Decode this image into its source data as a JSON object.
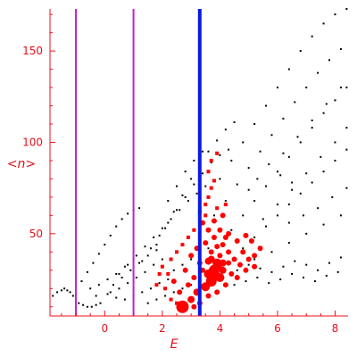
{
  "chart_data": {
    "type": "scatter",
    "xlabel": "E",
    "ylabel": "<n>",
    "xlim": [
      -1.9,
      8.45
    ],
    "ylim": [
      5,
      173
    ],
    "x_ticks": [
      0,
      2,
      4,
      6,
      8
    ],
    "y_ticks": [
      50,
      100,
      150
    ],
    "grid": false,
    "axis_color": "#e8101a",
    "vertical_lines": [
      {
        "x": -1.0,
        "color": "#c020d0"
      },
      {
        "x": 1.0,
        "color": "#c020d0"
      },
      {
        "x": 3.3,
        "color": "#0a1be0"
      }
    ],
    "series": [
      {
        "color": "#000000",
        "points": [
          [
            -1.8,
            16
          ],
          [
            -1.65,
            18
          ],
          [
            -1.5,
            19
          ],
          [
            -1.4,
            20
          ],
          [
            -1.3,
            19
          ],
          [
            -1.2,
            18
          ],
          [
            -1.1,
            16
          ],
          [
            -1.0,
            14
          ],
          [
            -0.9,
            12
          ],
          [
            -0.75,
            11
          ],
          [
            -0.6,
            10
          ],
          [
            -0.45,
            10
          ],
          [
            -0.3,
            11
          ],
          [
            -0.15,
            12
          ],
          [
            -0.8,
            24
          ],
          [
            -0.6,
            29
          ],
          [
            -0.4,
            34
          ],
          [
            -0.2,
            39
          ],
          [
            0.0,
            44
          ],
          [
            0.2,
            49
          ],
          [
            0.4,
            54
          ],
          [
            0.6,
            58
          ],
          [
            0.8,
            61
          ],
          [
            1.0,
            63
          ],
          [
            1.2,
            64
          ],
          [
            0.5,
            28
          ],
          [
            0.8,
            33
          ],
          [
            1.1,
            38
          ],
          [
            1.4,
            43
          ],
          [
            1.7,
            48
          ],
          [
            2.0,
            53
          ],
          [
            2.3,
            58
          ],
          [
            2.6,
            63
          ],
          [
            2.9,
            68
          ],
          [
            3.2,
            72
          ],
          [
            3.5,
            76
          ],
          [
            1.3,
            35
          ],
          [
            1.6,
            42
          ],
          [
            1.9,
            49
          ],
          [
            2.2,
            56
          ],
          [
            2.5,
            63
          ],
          [
            2.8,
            70
          ],
          [
            3.1,
            77
          ],
          [
            3.4,
            83
          ],
          [
            3.7,
            89
          ],
          [
            4.0,
            93
          ],
          [
            4.3,
            96
          ],
          [
            1.8,
            44
          ],
          [
            2.1,
            53
          ],
          [
            2.4,
            62
          ],
          [
            2.7,
            71
          ],
          [
            3.0,
            80
          ],
          [
            3.3,
            88
          ],
          [
            3.6,
            95
          ],
          [
            3.9,
            101
          ],
          [
            4.2,
            107
          ],
          [
            4.5,
            111
          ],
          [
            2.2,
            68
          ],
          [
            2.5,
            76
          ],
          [
            2.8,
            84
          ],
          [
            3.1,
            90
          ],
          [
            3.4,
            95
          ],
          [
            3.6,
            70
          ],
          [
            4.0,
            80
          ],
          [
            4.4,
            90
          ],
          [
            4.8,
            100
          ],
          [
            5.2,
            110
          ],
          [
            5.6,
            120
          ],
          [
            6.0,
            130
          ],
          [
            6.4,
            140
          ],
          [
            6.8,
            150
          ],
          [
            7.2,
            158
          ],
          [
            7.6,
            165
          ],
          [
            8.0,
            170
          ],
          [
            8.4,
            173
          ],
          [
            3.8,
            60
          ],
          [
            4.2,
            68
          ],
          [
            4.6,
            77
          ],
          [
            5.0,
            86
          ],
          [
            5.4,
            95
          ],
          [
            5.8,
            104
          ],
          [
            6.2,
            113
          ],
          [
            6.6,
            122
          ],
          [
            7.0,
            130
          ],
          [
            7.4,
            138
          ],
          [
            7.8,
            145
          ],
          [
            8.2,
            151
          ],
          [
            4.4,
            52
          ],
          [
            4.8,
            60
          ],
          [
            5.2,
            68
          ],
          [
            5.6,
            76
          ],
          [
            6.0,
            84
          ],
          [
            6.4,
            92
          ],
          [
            6.8,
            100
          ],
          [
            7.2,
            108
          ],
          [
            7.6,
            116
          ],
          [
            8.0,
            123
          ],
          [
            8.4,
            130
          ],
          [
            4.8,
            42
          ],
          [
            5.2,
            48
          ],
          [
            5.6,
            54
          ],
          [
            6.0,
            60
          ],
          [
            6.4,
            66
          ],
          [
            6.8,
            72
          ],
          [
            7.2,
            78
          ],
          [
            7.6,
            84
          ],
          [
            8.0,
            90
          ],
          [
            8.4,
            96
          ],
          [
            5.2,
            36
          ],
          [
            5.8,
            40
          ],
          [
            6.4,
            45
          ],
          [
            7.0,
            50
          ],
          [
            7.6,
            55
          ],
          [
            8.2,
            60
          ],
          [
            5.5,
            58
          ],
          [
            6.0,
            66
          ],
          [
            6.5,
            74
          ],
          [
            7.0,
            83
          ],
          [
            7.5,
            92
          ],
          [
            8.0,
            100
          ],
          [
            8.4,
            108
          ],
          [
            6.2,
            94
          ],
          [
            6.7,
            103
          ],
          [
            7.2,
            112
          ],
          [
            7.7,
            121
          ],
          [
            8.2,
            130
          ],
          [
            0.2,
            18
          ],
          [
            0.5,
            20
          ],
          [
            0.8,
            23
          ],
          [
            1.1,
            26
          ],
          [
            1.4,
            29
          ],
          [
            1.7,
            33
          ],
          [
            2.0,
            36
          ],
          [
            -0.3,
            16
          ],
          [
            0.1,
            17
          ],
          [
            0.4,
            15
          ],
          [
            0.7,
            14
          ],
          [
            1.0,
            16
          ],
          [
            1.3,
            18
          ],
          [
            1.6,
            20
          ],
          [
            1.9,
            23
          ],
          [
            2.2,
            25
          ],
          [
            0.3,
            22
          ],
          [
            0.6,
            26
          ],
          [
            0.9,
            30
          ],
          [
            1.2,
            34
          ],
          [
            1.5,
            38
          ],
          [
            1.8,
            41
          ],
          [
            -0.5,
            20
          ],
          [
            -0.2,
            22
          ],
          [
            0.1,
            25
          ],
          [
            0.4,
            28
          ],
          [
            0.7,
            32
          ],
          [
            1.0,
            36
          ],
          [
            2.4,
            30
          ],
          [
            2.7,
            33
          ],
          [
            3.0,
            36
          ],
          [
            3.3,
            39
          ],
          [
            3.6,
            42
          ],
          [
            1.5,
            12
          ],
          [
            1.8,
            14
          ],
          [
            2.1,
            16
          ],
          [
            2.4,
            18
          ],
          [
            2.7,
            20
          ],
          [
            3.0,
            22
          ],
          [
            4.6,
            30
          ],
          [
            5.0,
            33
          ],
          [
            5.4,
            31
          ],
          [
            5.8,
            29
          ],
          [
            6.2,
            32
          ],
          [
            6.6,
            35
          ],
          [
            7.0,
            33
          ],
          [
            7.4,
            30
          ],
          [
            7.8,
            34
          ],
          [
            8.2,
            37
          ],
          [
            4.5,
            22
          ],
          [
            4.9,
            24
          ],
          [
            5.3,
            26
          ],
          [
            5.7,
            23
          ],
          [
            6.1,
            25
          ],
          [
            6.5,
            28
          ],
          [
            6.9,
            26
          ],
          [
            7.3,
            24
          ],
          [
            7.7,
            27
          ],
          [
            8.1,
            29
          ],
          [
            6.4,
            56
          ],
          [
            6.9,
            60
          ],
          [
            7.4,
            64
          ],
          [
            7.9,
            70
          ],
          [
            8.4,
            75
          ],
          [
            5.0,
            74
          ],
          [
            5.3,
            80
          ],
          [
            5.7,
            88
          ],
          [
            6.1,
            82
          ],
          [
            6.5,
            78
          ]
        ]
      },
      {
        "color": "#ff0000",
        "points": [
          [
            2.7,
            10,
            7
          ],
          [
            3.0,
            14,
            4
          ],
          [
            3.2,
            18,
            4
          ],
          [
            3.5,
            21,
            5
          ],
          [
            3.7,
            24,
            6
          ],
          [
            3.8,
            28,
            6
          ],
          [
            4.0,
            26,
            5
          ],
          [
            3.9,
            32,
            5
          ],
          [
            3.6,
            35,
            4
          ],
          [
            4.1,
            30,
            4
          ],
          [
            3.4,
            30,
            3
          ],
          [
            3.3,
            34,
            3
          ],
          [
            3.1,
            26,
            3
          ],
          [
            2.9,
            22,
            3
          ],
          [
            2.6,
            18,
            3
          ],
          [
            2.4,
            24,
            3
          ],
          [
            2.8,
            30,
            3
          ],
          [
            3.0,
            38,
            3
          ],
          [
            3.2,
            42,
            3
          ],
          [
            3.5,
            45,
            3
          ],
          [
            3.8,
            48,
            3
          ],
          [
            4.1,
            44,
            3
          ],
          [
            4.3,
            40,
            3
          ],
          [
            4.5,
            36,
            3
          ],
          [
            4.7,
            33,
            3
          ],
          [
            4.4,
            28,
            3
          ],
          [
            4.2,
            22,
            3
          ],
          [
            4.0,
            38,
            3
          ],
          [
            3.7,
            40,
            3
          ],
          [
            3.9,
            43,
            3
          ],
          [
            4.6,
            46,
            3
          ],
          [
            4.8,
            40,
            3
          ],
          [
            5.0,
            36,
            3
          ],
          [
            5.2,
            32,
            3
          ],
          [
            5.4,
            42,
            3
          ],
          [
            5.1,
            46,
            3
          ],
          [
            4.9,
            49,
            3
          ],
          [
            4.3,
            50,
            3
          ],
          [
            3.6,
            52,
            3
          ],
          [
            3.4,
            56,
            3
          ],
          [
            3.8,
            57,
            3
          ],
          [
            4.1,
            60,
            3
          ],
          [
            3.3,
            62,
            2
          ],
          [
            3.5,
            66,
            2
          ],
          [
            3.6,
            70,
            2
          ],
          [
            3.7,
            75,
            2
          ],
          [
            3.8,
            79,
            2
          ],
          [
            3.6,
            84,
            2
          ],
          [
            3.7,
            90,
            2
          ],
          [
            3.9,
            94,
            2
          ],
          [
            3.5,
            60,
            2
          ],
          [
            3.9,
            64,
            2
          ],
          [
            4.2,
            66,
            2
          ],
          [
            2.3,
            36,
            2
          ],
          [
            2.5,
            40,
            2
          ],
          [
            2.7,
            44,
            2
          ],
          [
            2.9,
            48,
            2
          ],
          [
            3.1,
            52,
            2
          ],
          [
            2.2,
            28,
            2
          ],
          [
            2.0,
            32,
            2
          ],
          [
            1.8,
            22,
            2
          ],
          [
            1.9,
            28,
            2
          ],
          [
            2.1,
            20,
            2
          ],
          [
            2.3,
            14,
            2
          ],
          [
            2.5,
            12,
            2
          ],
          [
            3.1,
            10,
            3
          ],
          [
            3.3,
            12,
            3
          ],
          [
            3.6,
            16,
            3
          ],
          [
            3.9,
            18,
            3
          ],
          [
            4.3,
            34,
            3
          ],
          [
            4.6,
            26,
            3
          ],
          [
            4.9,
            30,
            3
          ],
          [
            5.2,
            38,
            3
          ],
          [
            4.2,
            48,
            3
          ],
          [
            4.0,
            52,
            3
          ],
          [
            3.7,
            36,
            4
          ],
          [
            3.9,
            34,
            5
          ],
          [
            3.8,
            30,
            6
          ],
          [
            3.6,
            28,
            5
          ],
          [
            4.1,
            34,
            4
          ]
        ]
      }
    ]
  }
}
